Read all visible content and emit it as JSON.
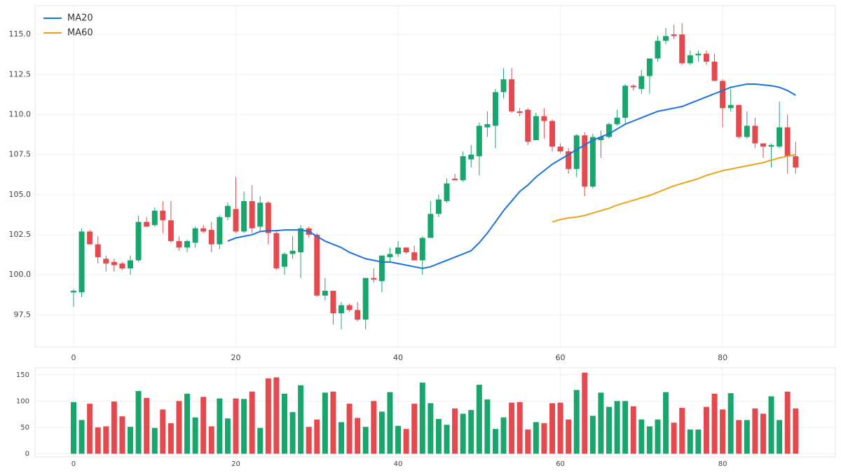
{
  "chart_data": {
    "type": "candlestick",
    "x": [
      0,
      1,
      2,
      3,
      4,
      5,
      6,
      7,
      8,
      9,
      10,
      11,
      12,
      13,
      14,
      15,
      16,
      17,
      18,
      19,
      20,
      21,
      22,
      23,
      24,
      25,
      26,
      27,
      28,
      29,
      30,
      31,
      32,
      33,
      34,
      35,
      36,
      37,
      38,
      39,
      40,
      41,
      42,
      43,
      44,
      45,
      46,
      47,
      48,
      49,
      50,
      51,
      52,
      53,
      54,
      55,
      56,
      57,
      58,
      59,
      60,
      61,
      62,
      63,
      64,
      65,
      66,
      67,
      68,
      69,
      70,
      71,
      72,
      73,
      74,
      75,
      76,
      77,
      78,
      79,
      80,
      81,
      82,
      83,
      84,
      85,
      86,
      87,
      88,
      89
    ],
    "open": [
      98.9,
      98.9,
      102.7,
      101.9,
      101.0,
      100.8,
      100.7,
      100.4,
      100.9,
      103.3,
      103.1,
      104.0,
      103.4,
      102.1,
      101.7,
      102.0,
      102.9,
      102.8,
      101.9,
      103.6,
      104.1,
      102.7,
      104.6,
      103.0,
      104.5,
      102.6,
      100.5,
      101.3,
      101.4,
      102.9,
      102.5,
      98.7,
      99.0,
      97.6,
      98.1,
      97.8,
      97.2,
      99.8,
      99.6,
      101.1,
      101.3,
      101.7,
      101.4,
      100.9,
      102.3,
      103.8,
      104.6,
      106.0,
      105.9,
      107.2,
      107.4,
      109.2,
      109.3,
      111.4,
      112.2,
      110.2,
      110.3,
      108.4,
      109.9,
      109.6,
      108.0,
      107.7,
      106.6,
      108.7,
      105.5,
      108.4,
      108.6,
      109.4,
      109.8,
      111.8,
      111.6,
      112.4,
      113.5,
      114.6,
      115.0,
      115.0,
      113.2,
      113.7,
      113.8,
      113.3,
      112.1,
      110.4,
      110.6,
      108.6,
      109.3,
      108.2,
      108.0,
      108.0,
      109.2,
      107.4
    ],
    "high": [
      99.1,
      102.9,
      102.8,
      102.4,
      101.2,
      101.0,
      100.8,
      101.2,
      103.7,
      103.6,
      104.2,
      104.6,
      104.6,
      102.4,
      102.2,
      103.0,
      103.1,
      103.3,
      103.7,
      104.5,
      106.1,
      105.2,
      105.6,
      104.9,
      104.6,
      102.7,
      101.4,
      102.4,
      103.1,
      103.0,
      102.6,
      99.8,
      99.0,
      98.3,
      98.2,
      98.3,
      99.8,
      100.4,
      101.2,
      101.7,
      102.1,
      101.7,
      101.8,
      102.4,
      104.6,
      105.0,
      106.0,
      106.3,
      107.7,
      108.1,
      109.5,
      110.2,
      111.6,
      112.9,
      112.9,
      110.4,
      110.4,
      110.1,
      110.4,
      109.7,
      108.2,
      107.9,
      108.8,
      108.9,
      108.8,
      109.0,
      109.5,
      110.3,
      111.9,
      111.9,
      112.8,
      113.5,
      114.9,
      115.4,
      115.6,
      115.7,
      114.0,
      114.0,
      114.0,
      113.8,
      112.2,
      111.6,
      110.6,
      110.2,
      109.8,
      108.2,
      108.2,
      110.8,
      110.0,
      108.3
    ],
    "low": [
      98.0,
      98.6,
      101.9,
      100.7,
      100.2,
      100.2,
      100.3,
      100.0,
      100.8,
      103.0,
      103.0,
      102.6,
      102.0,
      101.5,
      101.4,
      101.7,
      102.6,
      101.4,
      101.6,
      103.4,
      102.6,
      102.6,
      102.6,
      102.7,
      101.9,
      100.3,
      100.0,
      101.0,
      99.8,
      102.3,
      98.6,
      98.4,
      96.9,
      96.6,
      97.7,
      97.1,
      96.6,
      99.5,
      98.9,
      100.8,
      101.1,
      101.3,
      100.9,
      100.0,
      102.3,
      103.6,
      104.5,
      105.9,
      105.8,
      106.7,
      106.2,
      108.6,
      107.9,
      111.0,
      110.1,
      109.9,
      108.1,
      108.4,
      108.5,
      107.7,
      107.6,
      106.3,
      106.1,
      104.9,
      105.4,
      107.3,
      108.5,
      109.3,
      109.4,
      111.5,
      111.3,
      111.3,
      113.3,
      114.4,
      114.7,
      113.1,
      113.1,
      113.3,
      113.1,
      112.1,
      109.2,
      110.2,
      108.5,
      108.5,
      107.9,
      107.3,
      106.7,
      107.9,
      106.3,
      106.3
    ],
    "close": [
      99.0,
      102.7,
      101.9,
      101.1,
      100.7,
      100.6,
      100.4,
      100.9,
      103.3,
      103.0,
      104.0,
      103.4,
      102.1,
      101.7,
      102.1,
      102.9,
      102.7,
      101.9,
      103.6,
      104.3,
      102.7,
      104.6,
      102.9,
      104.5,
      102.6,
      100.4,
      101.3,
      101.5,
      102.9,
      102.5,
      98.7,
      99.0,
      97.6,
      98.1,
      97.8,
      97.2,
      99.8,
      99.7,
      101.2,
      101.3,
      101.7,
      101.4,
      100.9,
      102.3,
      103.8,
      104.7,
      105.7,
      105.9,
      107.4,
      107.5,
      109.3,
      109.4,
      111.4,
      112.2,
      110.2,
      110.1,
      108.3,
      109.9,
      109.6,
      108.0,
      107.7,
      106.6,
      108.7,
      105.5,
      108.6,
      108.6,
      109.4,
      109.8,
      111.8,
      111.7,
      112.4,
      113.5,
      114.6,
      114.9,
      114.9,
      113.2,
      113.7,
      113.8,
      113.3,
      112.1,
      110.4,
      110.6,
      108.6,
      109.3,
      108.2,
      108.0,
      108.1,
      109.2,
      107.4,
      106.7
    ],
    "volume": [
      98,
      64,
      95,
      50,
      52,
      99,
      71,
      51,
      119,
      106,
      49,
      84,
      58,
      100,
      114,
      69,
      108,
      52,
      105,
      67,
      105,
      104,
      118,
      49,
      143,
      145,
      114,
      79,
      130,
      51,
      65,
      116,
      118,
      60,
      95,
      68,
      51,
      100,
      80,
      117,
      53,
      47,
      95,
      135,
      96,
      66,
      55,
      86,
      76,
      83,
      131,
      103,
      47,
      69,
      97,
      98,
      46,
      60,
      58,
      96,
      97,
      65,
      121,
      154,
      72,
      116,
      89,
      100,
      100,
      90,
      65,
      52,
      65,
      117,
      59,
      87,
      46,
      46,
      89,
      114,
      84,
      115,
      64,
      64,
      86,
      76,
      109,
      64,
      118,
      86
    ],
    "up_color": "#18a66c",
    "down_color": "#e5484d",
    "series": [
      {
        "name": "MA20",
        "color": "#1a73d9",
        "values": [
          null,
          null,
          null,
          null,
          null,
          null,
          null,
          null,
          null,
          null,
          null,
          null,
          null,
          null,
          null,
          null,
          null,
          null,
          null,
          102.1,
          102.3,
          102.4,
          102.5,
          102.7,
          102.75,
          102.75,
          102.8,
          102.8,
          102.8,
          102.7,
          102.4,
          102.1,
          101.9,
          101.7,
          101.4,
          101.2,
          101.0,
          100.9,
          100.8,
          100.8,
          100.7,
          100.6,
          100.5,
          100.4,
          100.5,
          100.7,
          100.9,
          101.1,
          101.3,
          101.5,
          102.0,
          102.6,
          103.3,
          104.0,
          104.6,
          105.2,
          105.6,
          106.1,
          106.5,
          106.9,
          107.2,
          107.5,
          107.8,
          108.1,
          108.4,
          108.6,
          108.8,
          109.1,
          109.4,
          109.6,
          109.8,
          110.0,
          110.2,
          110.3,
          110.4,
          110.5,
          110.7,
          110.9,
          111.1,
          111.3,
          111.5,
          111.7,
          111.8,
          111.9,
          111.9,
          111.85,
          111.8,
          111.7,
          111.5,
          111.2
        ]
      },
      {
        "name": "MA60",
        "color": "#e8a317",
        "values": [
          null,
          null,
          null,
          null,
          null,
          null,
          null,
          null,
          null,
          null,
          null,
          null,
          null,
          null,
          null,
          null,
          null,
          null,
          null,
          null,
          null,
          null,
          null,
          null,
          null,
          null,
          null,
          null,
          null,
          null,
          null,
          null,
          null,
          null,
          null,
          null,
          null,
          null,
          null,
          null,
          null,
          null,
          null,
          null,
          null,
          null,
          null,
          null,
          null,
          null,
          null,
          null,
          null,
          null,
          null,
          null,
          null,
          null,
          null,
          103.3,
          103.45,
          103.55,
          103.6,
          103.7,
          103.85,
          104.0,
          104.15,
          104.35,
          104.5,
          104.65,
          104.8,
          104.95,
          105.15,
          105.35,
          105.55,
          105.7,
          105.85,
          106.0,
          106.2,
          106.35,
          106.5,
          106.6,
          106.7,
          106.8,
          106.9,
          107.0,
          107.15,
          107.3,
          107.4,
          107.5
        ]
      }
    ],
    "xlim": [
      -4.75,
      93.9
    ],
    "xticks": [
      0,
      20,
      40,
      60,
      80
    ],
    "ylim": [
      95.5,
      116.8
    ],
    "yticks": [
      97.5,
      {
        "value": 100,
        "label": "100.0"
      },
      102.5,
      {
        "value": 105,
        "label": "105.0"
      },
      107.5,
      {
        "value": 110,
        "label": "110.0"
      },
      112.5,
      {
        "value": 115,
        "label": "115.0"
      }
    ],
    "volume_ylim": [
      -6,
      163
    ],
    "volume_yticks": [
      0,
      50,
      100,
      150
    ],
    "grid": true,
    "legend": "upper left"
  }
}
